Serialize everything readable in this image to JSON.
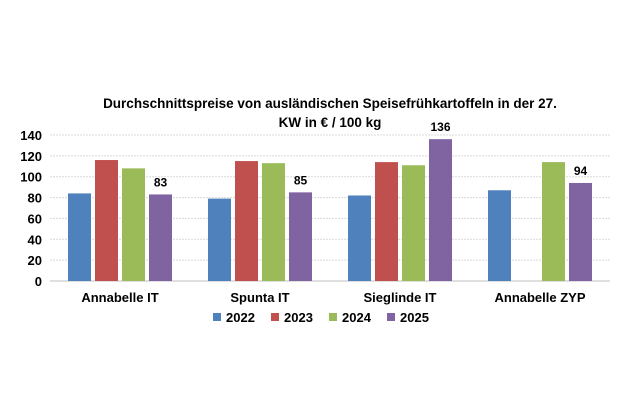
{
  "chart_data": {
    "type": "bar",
    "title_line1": "Durchschnittspreise von ausländischen Speisefrühkartoffeln in der 27.",
    "title_line2": "KW in € / 100 kg",
    "xlabel": "",
    "ylabel": "",
    "ylim": [
      0,
      140
    ],
    "yticks": [
      0,
      20,
      40,
      60,
      80,
      100,
      120,
      140
    ],
    "categories": [
      "Annabelle IT",
      "Spunta IT",
      "Sieglinde IT",
      "Annabelle ZYP"
    ],
    "series": [
      {
        "name": "2022",
        "color": "#4f81bd",
        "values": [
          84,
          79,
          82,
          87
        ]
      },
      {
        "name": "2023",
        "color": "#c0504d",
        "values": [
          116,
          115,
          114,
          null
        ]
      },
      {
        "name": "2024",
        "color": "#9bbb59",
        "values": [
          108,
          113,
          111,
          114
        ]
      },
      {
        "name": "2025",
        "color": "#8064a2",
        "values": [
          83,
          85,
          136,
          94
        ],
        "labels": [
          "83",
          "85",
          "136",
          "94"
        ]
      }
    ],
    "legend": "bottom",
    "grid": true
  }
}
